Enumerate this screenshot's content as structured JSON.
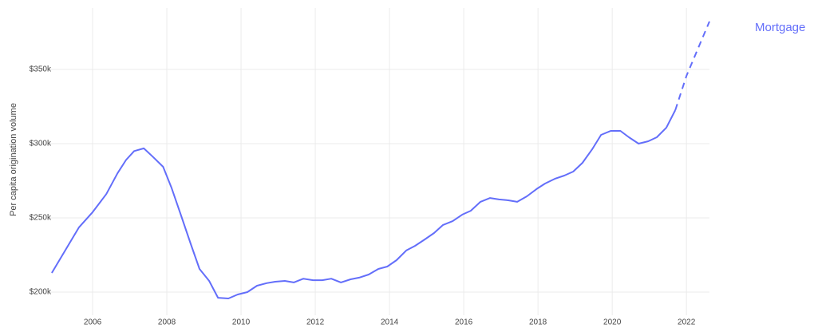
{
  "chart_data": {
    "type": "line",
    "y_label": "Per capita origination volume",
    "x": [
      2004.9,
      2005.63,
      2006.0,
      2006.37,
      2006.67,
      2006.9,
      2007.12,
      2007.38,
      2007.63,
      2007.9,
      2008.13,
      2008.37,
      2008.65,
      2008.88,
      2009.14,
      2009.38,
      2009.66,
      2009.91,
      2010.17,
      2010.43,
      2010.69,
      2010.92,
      2011.18,
      2011.42,
      2011.68,
      2011.94,
      2012.19,
      2012.43,
      2012.69,
      2012.95,
      2013.18,
      2013.44,
      2013.7,
      2013.94,
      2014.19,
      2014.45,
      2014.69,
      2014.95,
      2015.2,
      2015.44,
      2015.7,
      2015.96,
      2016.19,
      2016.45,
      2016.71,
      2016.95,
      2017.2,
      2017.44,
      2017.7,
      2017.96,
      2018.19,
      2018.45,
      2018.71,
      2018.95,
      2019.2,
      2019.46,
      2019.7,
      2019.96,
      2020.22,
      2020.45,
      2020.71,
      2020.97,
      2021.2,
      2021.46,
      2021.7,
      2022.0,
      2022.32,
      2022.62
    ],
    "series": [
      {
        "name": "Mortgage",
        "color": "#636efa",
        "values": [
          212.9,
          243.5,
          253.8,
          266,
          280,
          289,
          295,
          296.8,
          291,
          284.4,
          270,
          252.7,
          232,
          215.6,
          207.5,
          196.2,
          195.7,
          198.4,
          200,
          204.3,
          206,
          207,
          207.5,
          206.5,
          209,
          208,
          208,
          209,
          206.5,
          208.6,
          209.7,
          211.8,
          215.6,
          217.2,
          221.5,
          228,
          231.2,
          235.5,
          239.8,
          245.2,
          247.8,
          252.2,
          254.8,
          260.8,
          263.4,
          262.4,
          261.8,
          260.8,
          264.5,
          269.4,
          273.1,
          276.3,
          278.5,
          281.2,
          287.1,
          296.2,
          305.9,
          308.6,
          308.6,
          304.3,
          300,
          301.6,
          304.3,
          310.8,
          322.6,
          345.7,
          364.5,
          382.3
        ],
        "dashed_from_x": 2021.7
      }
    ],
    "xlim": [
      2004.86,
      2022.62
    ],
    "xticks": [
      2006,
      2008,
      2010,
      2012,
      2014,
      2016,
      2018,
      2020,
      2022
    ],
    "ylim": [
      184.4,
      391.4
    ],
    "yticks": [
      {
        "value": 200,
        "label": "$200k"
      },
      {
        "value": 250,
        "label": "$250k"
      },
      {
        "value": 300,
        "label": "$300k"
      },
      {
        "value": 350,
        "label": "$350k"
      }
    ],
    "grid": true,
    "legend": "top-right"
  }
}
